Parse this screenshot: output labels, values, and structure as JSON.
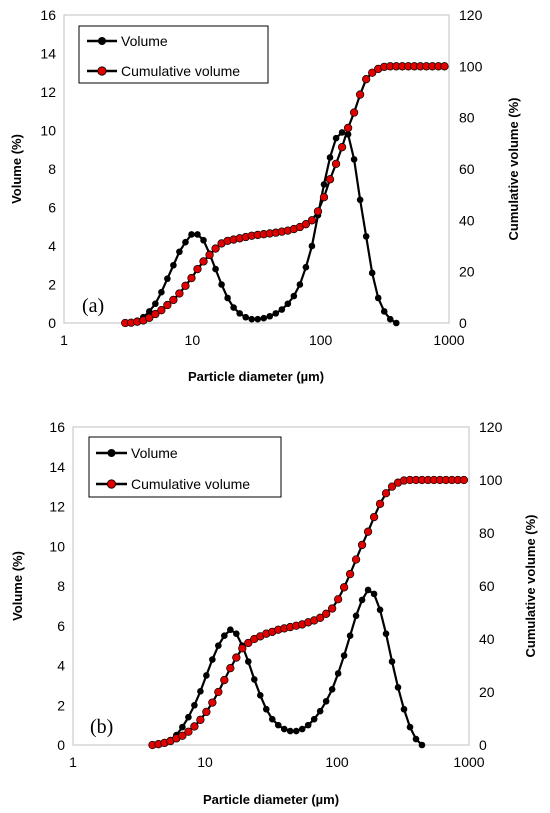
{
  "colors": {
    "volume": "#000000",
    "cumulative": "#e00000",
    "cumulative_edge": "#000000"
  },
  "chart_data": [
    {
      "type": "line",
      "panel_label": "(a)",
      "xlabel": "Particle diameter (µm)",
      "ylabel": "Volume (%)",
      "y2label": "Cumulative volume (%)",
      "xscale": "log",
      "xlim": [
        1,
        1000
      ],
      "ylim": [
        0,
        16
      ],
      "y2lim": [
        0,
        120
      ],
      "xticks": [
        "1",
        "10",
        "100",
        "1000"
      ],
      "yticks": [
        "0",
        "2",
        "4",
        "6",
        "8",
        "10",
        "12",
        "14",
        "16"
      ],
      "y2ticks": [
        "0",
        "20",
        "40",
        "60",
        "80",
        "100",
        "120"
      ],
      "grid": false,
      "legend_position": "top-left",
      "series": [
        {
          "name": "Volume",
          "axis": "left",
          "x": [
            3.0,
            3.34,
            3.72,
            4.15,
            4.62,
            5.15,
            5.74,
            6.39,
            7.12,
            7.93,
            8.84,
            9.85,
            10.97,
            12.22,
            13.62,
            15.17,
            16.9,
            18.83,
            20.98,
            23.38,
            26.05,
            29.02,
            32.33,
            36.02,
            40.13,
            44.71,
            49.81,
            55.5,
            61.83,
            68.89,
            76.75,
            85.51,
            95.27,
            106.1,
            118.3,
            131.8,
            146.8,
            163.6,
            182.2,
            203.0,
            226.2,
            252.0,
            280.8,
            312.8,
            348.5,
            388.3
          ],
          "y": [
            0.0,
            0.05,
            0.12,
            0.3,
            0.6,
            1.0,
            1.6,
            2.3,
            3.0,
            3.7,
            4.2,
            4.6,
            4.6,
            4.3,
            3.6,
            2.8,
            2.0,
            1.3,
            0.8,
            0.5,
            0.3,
            0.2,
            0.2,
            0.25,
            0.35,
            0.5,
            0.7,
            1.0,
            1.4,
            2.0,
            2.9,
            4.0,
            5.6,
            7.2,
            8.6,
            9.6,
            9.9,
            9.8,
            8.5,
            6.4,
            4.5,
            2.6,
            1.3,
            0.6,
            0.2,
            0.0
          ]
        },
        {
          "name": "Cumulative volume",
          "axis": "right",
          "x": [
            3.0,
            3.34,
            3.72,
            4.15,
            4.62,
            5.15,
            5.74,
            6.39,
            7.12,
            7.93,
            8.84,
            9.85,
            10.97,
            12.22,
            13.62,
            15.17,
            16.9,
            18.83,
            20.98,
            23.38,
            26.05,
            29.02,
            32.33,
            36.02,
            40.13,
            44.71,
            49.81,
            55.5,
            61.83,
            68.89,
            76.75,
            85.51,
            95.27,
            106.1,
            118.3,
            131.8,
            146.8,
            163.6,
            182.2,
            203.0,
            226.2,
            252.0,
            280.8,
            312.8,
            348.5,
            388.3,
            432.7,
            482.0,
            537.1,
            598.4,
            666.7,
            742.8,
            827.6,
            922.1
          ],
          "y": [
            0.0,
            0.1,
            0.5,
            1.0,
            2.0,
            3.5,
            5.0,
            7.0,
            9.0,
            11.5,
            14.5,
            17.5,
            21.0,
            24.0,
            26.5,
            29.0,
            31.0,
            32.0,
            32.5,
            33.0,
            33.5,
            34.0,
            34.3,
            34.6,
            34.9,
            35.2,
            35.6,
            36.0,
            36.6,
            37.4,
            38.5,
            40.0,
            43.5,
            49.0,
            56.0,
            62.0,
            68.5,
            76.0,
            82.0,
            89.0,
            95.0,
            97.5,
            99.0,
            99.8,
            100.0,
            100.0,
            100.0,
            100.0,
            100.0,
            100.0,
            100.0,
            100.0,
            100.0,
            100.0
          ]
        }
      ]
    },
    {
      "type": "line",
      "panel_label": "(b)",
      "xlabel": "Particle diameter (µm)",
      "ylabel": "Volume (%)",
      "y2label": "Cumulative volume (%)",
      "xscale": "log",
      "xlim": [
        1,
        1000
      ],
      "ylim": [
        0,
        16
      ],
      "y2lim": [
        0,
        120
      ],
      "xticks": [
        "1",
        "10",
        "100",
        "1000"
      ],
      "yticks": [
        "0",
        "2",
        "4",
        "6",
        "8",
        "10",
        "12",
        "14",
        "16"
      ],
      "y2ticks": [
        "0",
        "20",
        "40",
        "60",
        "80",
        "100",
        "120"
      ],
      "grid": false,
      "legend_position": "top-left",
      "series": [
        {
          "name": "Volume",
          "axis": "left",
          "x": [
            4.0,
            4.44,
            4.93,
            5.47,
            6.07,
            6.74,
            7.49,
            8.31,
            9.23,
            10.24,
            11.37,
            12.62,
            14.01,
            15.56,
            17.27,
            19.17,
            21.28,
            23.63,
            26.23,
            29.12,
            32.33,
            35.89,
            39.84,
            44.23,
            49.1,
            54.5,
            60.5,
            67.17,
            74.56,
            82.77,
            91.89,
            102.0,
            113.2,
            125.7,
            139.5,
            154.9,
            171.9,
            190.9,
            211.9,
            235.2,
            261.1,
            289.9,
            321.8,
            357.3,
            396.6,
            440.3
          ],
          "y": [
            0.0,
            0.05,
            0.12,
            0.25,
            0.5,
            0.9,
            1.4,
            2.0,
            2.7,
            3.5,
            4.3,
            5.0,
            5.5,
            5.8,
            5.6,
            5.0,
            4.2,
            3.3,
            2.5,
            1.8,
            1.3,
            1.0,
            0.8,
            0.7,
            0.7,
            0.8,
            1.0,
            1.3,
            1.7,
            2.2,
            2.8,
            3.6,
            4.5,
            5.5,
            6.5,
            7.3,
            7.8,
            7.6,
            6.8,
            5.6,
            4.2,
            2.9,
            1.8,
            0.9,
            0.3,
            0.0
          ]
        },
        {
          "name": "Cumulative volume",
          "axis": "right",
          "x": [
            4.0,
            4.44,
            4.93,
            5.47,
            6.07,
            6.74,
            7.49,
            8.31,
            9.23,
            10.24,
            11.37,
            12.62,
            14.01,
            15.56,
            17.27,
            19.17,
            21.28,
            23.63,
            26.23,
            29.12,
            32.33,
            35.89,
            39.84,
            44.23,
            49.1,
            54.5,
            60.5,
            67.17,
            74.56,
            82.77,
            91.89,
            102.0,
            113.2,
            125.7,
            139.5,
            154.9,
            171.9,
            190.9,
            211.9,
            235.2,
            261.1,
            289.9,
            321.8,
            357.3,
            396.6,
            440.3,
            488.8,
            542.6,
            602.4,
            668.7,
            742.3,
            824.1,
            914.8
          ],
          "y": [
            0.0,
            0.3,
            0.8,
            1.5,
            2.5,
            3.5,
            5.0,
            7.0,
            9.5,
            12.5,
            16.0,
            20.0,
            24.5,
            29.0,
            33.0,
            36.5,
            38.5,
            40.0,
            41.0,
            42.0,
            42.7,
            43.5,
            44.0,
            44.5,
            45.0,
            45.5,
            46.3,
            47.0,
            48.0,
            49.5,
            51.5,
            55.0,
            59.5,
            64.5,
            70.0,
            75.5,
            80.5,
            86.0,
            91.0,
            95.0,
            97.5,
            99.0,
            99.8,
            100.0,
            100.0,
            100.0,
            100.0,
            100.0,
            100.0,
            100.0,
            100.0,
            100.0,
            100.0
          ]
        }
      ]
    }
  ]
}
